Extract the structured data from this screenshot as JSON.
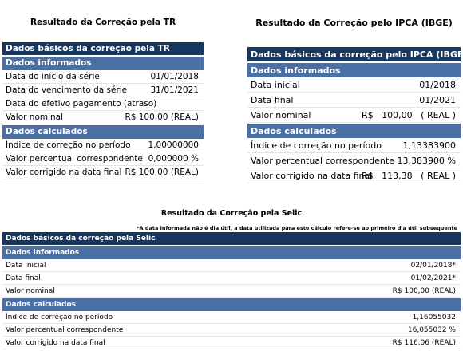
{
  "panels": [
    {
      "title": "Resultado da Correção pela TR",
      "header": "Dados básicos da correção pela TR",
      "sections": [
        {
          "title": "Dados informados",
          "rows": [
            [
              "Data do início da série",
              "01/01/2018"
            ],
            [
              "Data do vencimento da série",
              "31/01/2021"
            ],
            [
              "Data do efetivo pagamento (atraso)",
              ""
            ],
            [
              "Valor nominal",
              "R$ 100,00 (REAL)"
            ]
          ]
        },
        {
          "title": "Dados calculados",
          "rows": [
            [
              "Índice de correção no período",
              "1,00000000"
            ],
            [
              "Valor percentual correspondente",
              "0,000000 %"
            ],
            [
              "Valor corrigido na data final",
              "R$ 100,00 (REAL)"
            ]
          ]
        }
      ]
    },
    {
      "title": "Resultado da Correção pelo IPCA (IBGE)",
      "header": "Dados básicos da correção pelo IPCA (IBGE)",
      "sections": [
        {
          "title": "Dados informados",
          "rows": [
            [
              "Data inicial",
              "01/2018"
            ],
            [
              "Data final",
              "01/2021"
            ],
            [
              "Valor nominal",
              "R$   100,00   ( REAL )"
            ]
          ]
        },
        {
          "title": "Dados calculados",
          "rows": [
            [
              "Índice de correção no período",
              "1,13383900"
            ],
            [
              "Valor percentual correspondente",
              "13,383900 %"
            ],
            [
              "Valor corrigido na data final",
              "R$   113,38   ( REAL )"
            ]
          ]
        }
      ]
    },
    {
      "title": "Resultado da Correção pela Selic",
      "note": "*A data informada não é dia útil, a data utilizada para este cálculo refere-se ao primeiro dia útil subsequente",
      "header": "Dados básicos da correção pela Selic",
      "sections": [
        {
          "title": "Dados informados",
          "rows": [
            [
              "Data inicial",
              "02/01/2018*"
            ],
            [
              "Data final",
              "01/02/2021*"
            ],
            [
              "Valor nominal",
              "R$ 100,00 (REAL)"
            ]
          ]
        },
        {
          "title": "Dados calculados",
          "rows": [
            [
              "Índice de correção no período",
              "1,16055032"
            ],
            [
              "Valor percentual correspondente",
              "16,055032 %"
            ],
            [
              "Valor corrigido na data final",
              "R$ 116,06 (REAL)"
            ]
          ]
        }
      ]
    }
  ]
}
